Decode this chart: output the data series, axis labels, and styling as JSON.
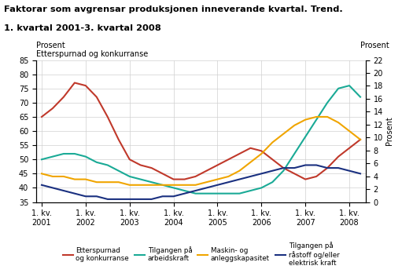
{
  "title_line1": "Faktorar som avgrensar produksjonen inneverande kvartal. Trend.",
  "title_line2": "1. kvartal 2001-3. kvartal 2008",
  "ylabel_left": "Prosent",
  "ylabel_left2": "Etterspurnad og konkurranse",
  "ylabel_right": "Prosent",
  "ylim_left": [
    35,
    85
  ],
  "ylim_right": [
    0,
    22
  ],
  "xtick_labels": [
    "1. kv.\n2001",
    "1. kv.\n2002",
    "1. kv.\n2003",
    "1. kv.\n2004",
    "1. kv.\n2005",
    "1. kv.\n2006",
    "1. kv.\n2007",
    "1. kv.\n2008"
  ],
  "series": {
    "Etterspurnad\nog konkurranse": {
      "color": "#c0392b",
      "values": [
        65,
        68,
        72,
        77,
        76,
        72,
        65,
        57,
        50,
        48,
        47,
        45,
        43,
        43,
        44,
        46,
        48,
        50,
        52,
        54,
        53,
        50,
        47,
        45,
        43,
        44,
        47,
        51,
        54,
        57
      ]
    },
    "Tilgangen på\narbeidskraft": {
      "color": "#1aaa96",
      "values": [
        50,
        51,
        52,
        52,
        51,
        49,
        48,
        46,
        44,
        43,
        42,
        41,
        40,
        39,
        38,
        38,
        38,
        38,
        38,
        39,
        40,
        42,
        46,
        52,
        58,
        64,
        70,
        75,
        76,
        72
      ]
    },
    "Maskin- og\nanleggskapasitet": {
      "color": "#f0a500",
      "values": [
        45,
        44,
        44,
        43,
        43,
        42,
        42,
        42,
        41,
        41,
        41,
        41,
        41,
        41,
        41,
        42,
        43,
        44,
        46,
        49,
        52,
        56,
        59,
        62,
        64,
        65,
        65,
        63,
        60,
        57
      ]
    },
    "Tilgangen på\nråstoff og/eller\nelektrisk kraft": {
      "color": "#1a3080",
      "values": [
        41,
        40,
        39,
        38,
        37,
        37,
        36,
        36,
        36,
        36,
        36,
        37,
        37,
        38,
        39,
        40,
        41,
        42,
        43,
        44,
        45,
        46,
        47,
        47,
        48,
        48,
        47,
        47,
        46,
        45
      ]
    }
  },
  "n_points": 30,
  "left_ticks": [
    35,
    40,
    45,
    50,
    55,
    60,
    65,
    70,
    75,
    80,
    85
  ],
  "right_ticks": [
    0,
    2,
    4,
    6,
    8,
    10,
    12,
    14,
    16,
    18,
    20,
    22
  ],
  "xtick_pos": [
    0,
    4,
    8,
    12,
    16,
    20,
    24,
    28
  ]
}
